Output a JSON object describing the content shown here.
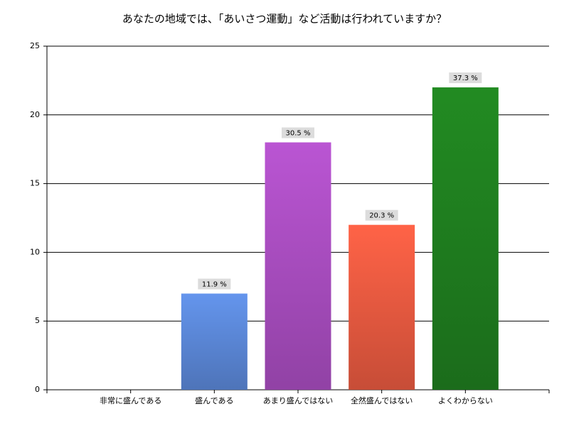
{
  "chart_data": {
    "type": "bar",
    "title": "あなたの地域では、「あいさつ運動」など活動は行われていますか？",
    "categories": [
      "非常に盛んである",
      "盛んである",
      "あまり盛んではない",
      "全然盛んではない",
      "よくわからない"
    ],
    "values": [
      0,
      7,
      18,
      12,
      22
    ],
    "value_labels": [
      null,
      "11.9 %",
      "30.5 %",
      "20.3 %",
      "37.3 %"
    ],
    "colors": [
      null,
      "#6495ed",
      "#ba55d3",
      "#ff6347",
      "#228b22"
    ],
    "ylim": [
      0,
      25
    ],
    "yticks": [
      0,
      5,
      10,
      15,
      20,
      25
    ],
    "grid": true
  }
}
